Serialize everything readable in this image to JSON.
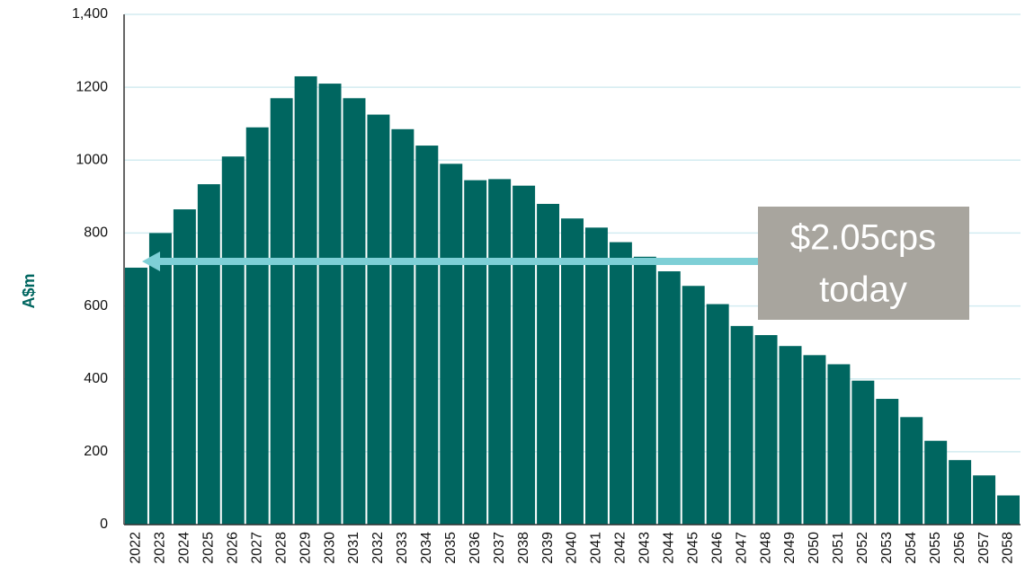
{
  "chart_data": {
    "type": "bar",
    "y_label": "A$m",
    "annotation": [
      "$2.05cps",
      "today"
    ],
    "categories": [
      "2022",
      "2023",
      "2024",
      "2025",
      "2026",
      "2027",
      "2028",
      "2029",
      "2030",
      "2031",
      "2032",
      "2033",
      "2034",
      "2035",
      "2036",
      "2037",
      "2038",
      "2039",
      "2040",
      "2041",
      "2042",
      "2043",
      "2044",
      "2045",
      "2046",
      "2047",
      "2048",
      "2049",
      "2050",
      "2051",
      "2052",
      "2053",
      "2054",
      "2055",
      "2056",
      "2057",
      "2058"
    ],
    "values": [
      705,
      800,
      865,
      934,
      1010,
      1090,
      1170,
      1230,
      1210,
      1170,
      1125,
      1085,
      1040,
      990,
      945,
      948,
      930,
      880,
      840,
      815,
      775,
      735,
      695,
      655,
      605,
      545,
      520,
      490,
      465,
      440,
      395,
      345,
      295,
      230,
      177,
      135,
      80
    ],
    "color": "#006660",
    "ylim": [
      0,
      1400
    ],
    "yticks": [
      0,
      200,
      400,
      600,
      800,
      1000,
      1200,
      {
        "value": 1400,
        "label": "1,400"
      }
    ],
    "grid": true
  }
}
